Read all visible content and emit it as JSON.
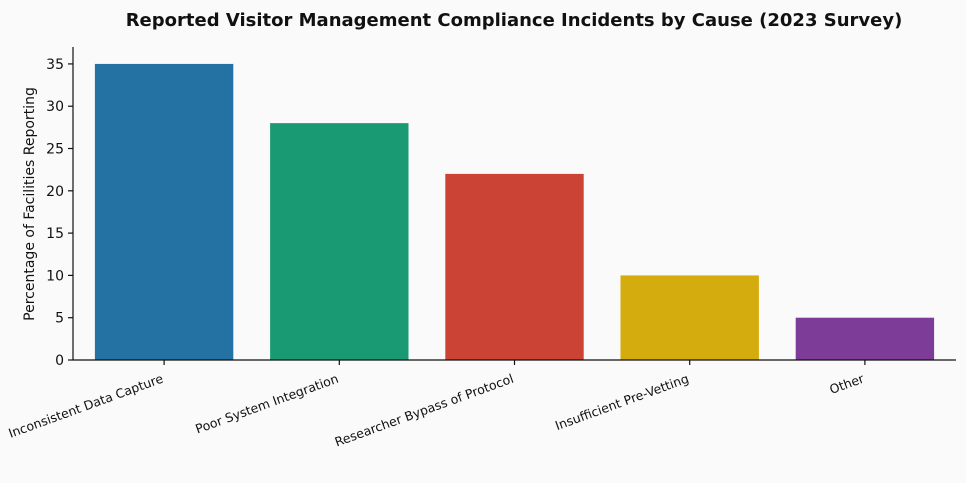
{
  "chart_data": {
    "type": "bar",
    "title": "Reported Visitor Management Compliance Incidents by Cause (2023 Survey)",
    "xlabel": "",
    "ylabel": "Percentage of Facilities Reporting",
    "categories": [
      "Inconsistent Data Capture",
      "Poor System Integration",
      "Researcher Bypass of Protocol",
      "Insufficient Pre-Vetting",
      "Other"
    ],
    "values": [
      35,
      28,
      22,
      10,
      5
    ],
    "colors": [
      "#2471a3",
      "#1a9a73",
      "#cb4335",
      "#d4ac0d",
      "#7d3c98"
    ],
    "ylim": [
      0,
      37
    ],
    "yticks": [
      0,
      5,
      10,
      15,
      20,
      25,
      30,
      35
    ],
    "grid": false,
    "legend": "none"
  }
}
